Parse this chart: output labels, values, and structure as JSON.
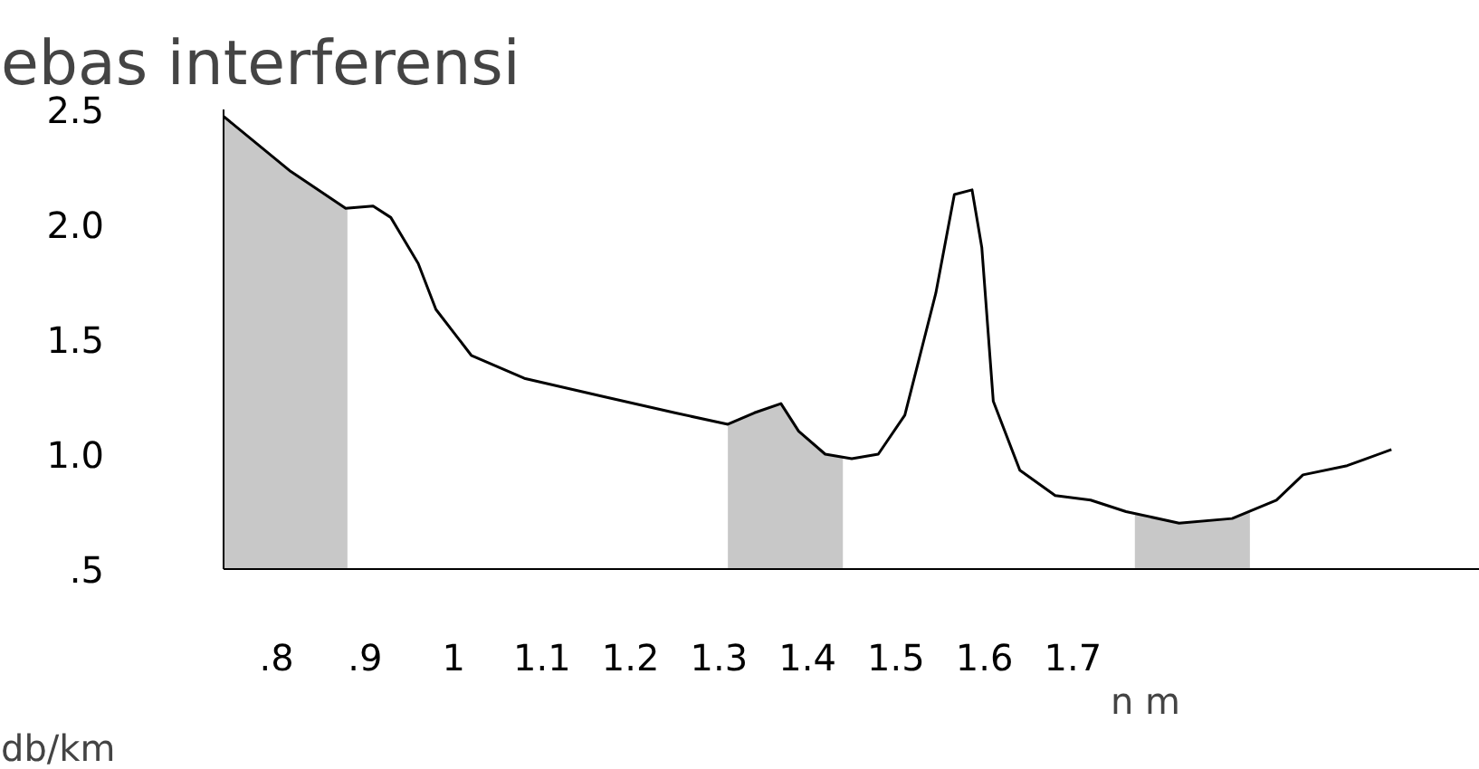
{
  "chart_data": {
    "type": "line",
    "title": "ebas interferensi",
    "xlabel": "n m",
    "ylabel": "db/km",
    "xlim": [
      0.74,
      2.16
    ],
    "ylim": [
      0.5,
      2.5
    ],
    "xticks": [
      {
        "value": 0.8,
        "label": ".8"
      },
      {
        "value": 0.9,
        "label": ".9"
      },
      {
        "value": 1,
        "label": "1"
      },
      1.1,
      1.2,
      1.3,
      1.4,
      1.5,
      1.6,
      1.7
    ],
    "yticks": [
      {
        "value": 0.5,
        "label": ".5"
      },
      {
        "value": 1.0,
        "label": "1.0"
      },
      {
        "value": 1.5,
        "label": "1.5"
      },
      {
        "value": 2.0,
        "label": "2.0"
      },
      {
        "value": 2.5,
        "label": "2.5"
      }
    ],
    "grid": false,
    "bands": [
      {
        "axis": "x",
        "from": 0.74,
        "to": 0.88,
        "color": "#c8c8c8"
      },
      {
        "axis": "x",
        "from": 1.31,
        "to": 1.44,
        "color": "#c8c8c8"
      },
      {
        "axis": "x",
        "from": 1.77,
        "to": 1.9,
        "color": "#c8c8c8"
      }
    ],
    "series": [
      {
        "color": "#000000",
        "x": [
          0.74,
          0.816,
          0.878,
          0.909,
          0.929,
          0.96,
          0.98,
          1.02,
          1.08,
          1.17,
          1.25,
          1.31,
          1.34,
          1.37,
          1.39,
          1.42,
          1.45,
          1.48,
          1.51,
          1.545,
          1.566,
          1.586,
          1.597,
          1.61,
          1.64,
          1.68,
          1.72,
          1.76,
          1.82,
          1.88,
          1.93,
          1.96,
          2.01,
          2.06
        ],
        "values": [
          2.47,
          2.23,
          2.07,
          2.08,
          2.03,
          1.83,
          1.63,
          1.43,
          1.33,
          1.25,
          1.18,
          1.13,
          1.18,
          1.22,
          1.1,
          1.0,
          0.98,
          1.0,
          1.17,
          1.7,
          2.13,
          2.15,
          1.9,
          1.23,
          0.93,
          0.82,
          0.8,
          0.75,
          0.7,
          0.72,
          0.8,
          0.91,
          0.95,
          1.02
        ]
      }
    ]
  }
}
